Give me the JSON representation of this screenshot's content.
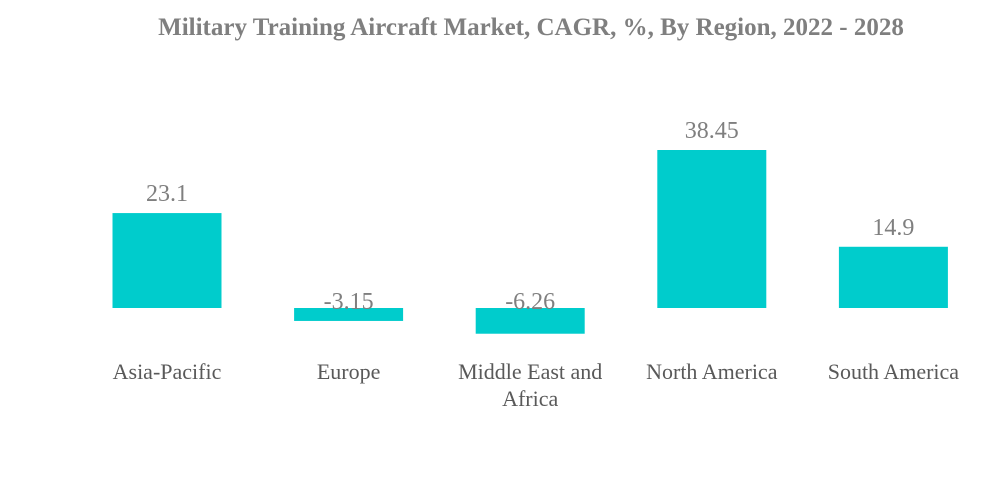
{
  "chart_data": {
    "type": "bar",
    "title": "Military Training Aircraft Market, CAGR, %, By Region, 2022 - 2028",
    "categories": [
      "Asia-Pacific",
      "Europe",
      "Middle East and Africa",
      "North America",
      "South America"
    ],
    "category_lines": [
      [
        "Asia-Pacific"
      ],
      [
        "Europe"
      ],
      [
        "Middle East and",
        "Africa"
      ],
      [
        "North America"
      ],
      [
        "South America"
      ]
    ],
    "values": [
      23.1,
      -3.15,
      -6.26,
      38.45,
      14.9
    ],
    "value_labels": [
      "23.1",
      "-3.15",
      "-6.26",
      "38.45",
      "14.9"
    ],
    "xlabel": "",
    "ylabel": "",
    "grid": false,
    "legend": "none",
    "bar_color": "#00cccc",
    "label_color": "#7f7f7f",
    "category_color": "#595959"
  }
}
